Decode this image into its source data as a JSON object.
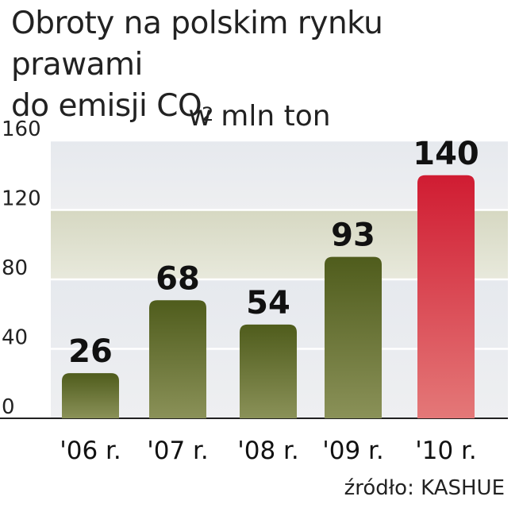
{
  "chart_data": {
    "type": "bar",
    "title_line1": "Obroty na polskim rynku prawami",
    "title_line2": "do emisji CO",
    "title_sub": "2",
    "subtitle": "w mln ton",
    "categories": [
      "'06 r.",
      "'07 r.",
      "'08 r.",
      "'09 r.",
      "'10 r."
    ],
    "values": [
      26,
      68,
      54,
      93,
      140
    ],
    "value_labels": [
      "26",
      "68",
      "54",
      "93",
      "140"
    ],
    "yticks": [
      "0",
      "40",
      "80",
      "120",
      "160"
    ],
    "ylim": [
      0,
      160
    ],
    "grid": true,
    "colors": {
      "bar": "#5c6b24",
      "highlight_bar": "#d42a3a",
      "highlight_label": "#c8102e",
      "band_light": "#e8ebef",
      "band_dark": "#d7d9c4"
    },
    "highlight_index": 4
  },
  "source": "źródło: KASHUE"
}
